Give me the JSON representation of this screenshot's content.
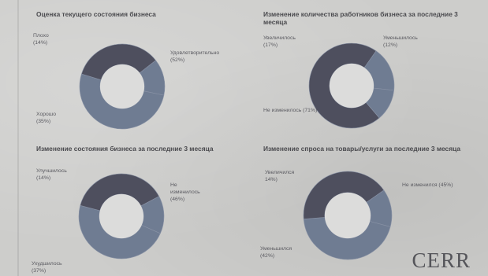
{
  "colors": {
    "dark": "#4e4f5e",
    "light": "#6f7c92",
    "hole": "#dcdcdb"
  },
  "brand": "CERR",
  "chart_data": [
    {
      "type": "pie",
      "title": "Оценка текущего состояния бизнеса",
      "labels": [
        "Плохо (14%)",
        "Удовлетворительно (52%)",
        "Хорошо (35%)"
      ],
      "categories": [
        "Плохо",
        "Удовлетворительно",
        "Хорошо"
      ],
      "values": [
        14,
        52,
        35
      ]
    },
    {
      "type": "pie",
      "title": "Изменение количества работников бизнеса за последние 3 месяца",
      "labels": [
        "Увеличилось (17%)",
        "Уменьшилось (12%)",
        "Не изменилось (71%)"
      ],
      "categories": [
        "Увеличилось",
        "Уменьшилось",
        "Не изменилось"
      ],
      "values": [
        17,
        12,
        71
      ]
    },
    {
      "type": "pie",
      "title": "Изменение состояния бизнеса за последние 3 месяца",
      "labels": [
        "Улучшилось (14%)",
        "Не изменилось (46%)",
        "Ухудшилось (37%)"
      ],
      "categories": [
        "Улучшилось",
        "Не изменилось",
        "Ухудшилось"
      ],
      "values": [
        14,
        46,
        37
      ]
    },
    {
      "type": "pie",
      "title": "Изменение спроса на товары/услуги за последние 3 месяца",
      "labels": [
        "Увеличился 14%)",
        "Не изменился (45%)",
        "Уменьшился (42%)"
      ],
      "categories": [
        "Увеличился",
        "Не изменился",
        "Уменьшился"
      ],
      "values": [
        14,
        45,
        42
      ]
    }
  ]
}
